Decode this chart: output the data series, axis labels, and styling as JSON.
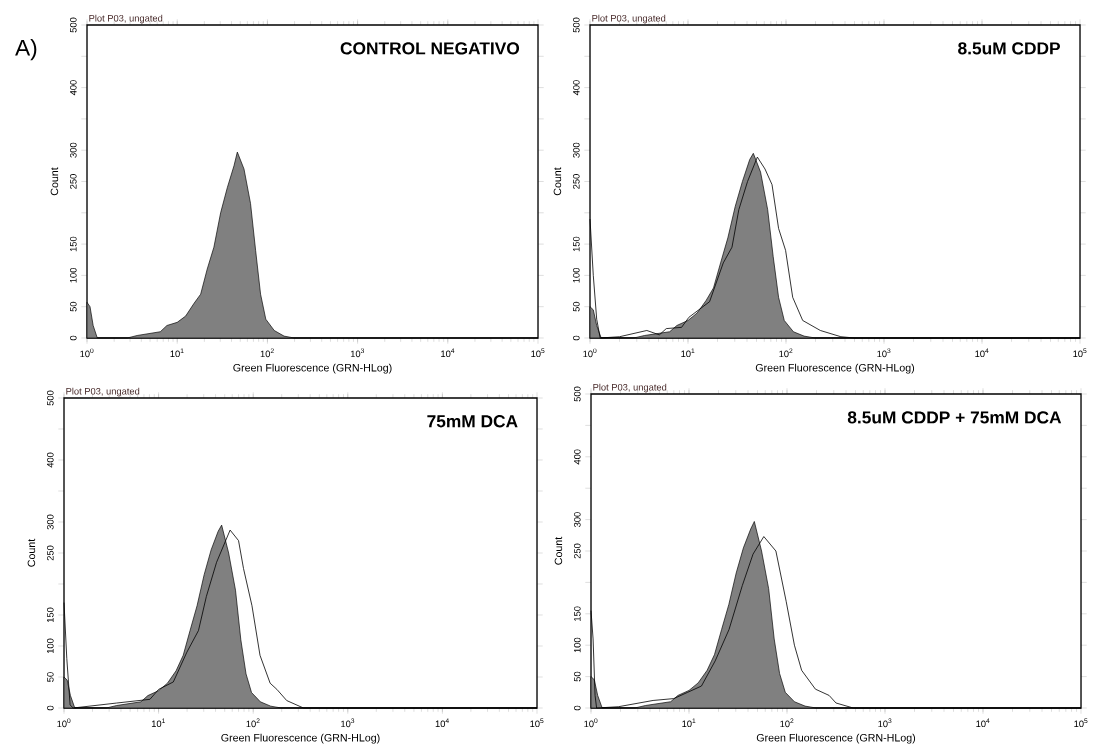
{
  "chart_data": [
    {
      "type": "area",
      "title": "CONTROL NEGATIVO",
      "subtitle": "Plot P03, ungated",
      "xlabel": "Green Fluorescence (GRN-HLog)",
      "ylabel": "Count",
      "annotations": [
        "A)"
      ],
      "log": "x",
      "xlim": [
        1,
        100000
      ],
      "xticks": [
        {
          "value": 1,
          "label": "10$^{0}$"
        },
        {
          "value": 10,
          "label": "10$^{1}$"
        },
        {
          "value": 100,
          "label": "10$^{2}$"
        },
        {
          "value": 1000,
          "label": "10$^{3}$"
        },
        {
          "value": 10000,
          "label": "10$^{4}$"
        },
        {
          "value": 100000,
          "label": "10$^{5}$"
        }
      ],
      "ylim": [
        0,
        500
      ],
      "yticks": [
        0,
        50,
        100,
        150,
        {
          "value": 200,
          "label": null
        },
        250,
        300,
        {
          "value": 350,
          "label": null
        },
        400,
        {
          "value": 450,
          "label": null
        },
        500
      ],
      "series": [
        {
          "color": "#808080",
          "x": [
            1,
            1.08,
            1.17,
            1.3,
            2.8,
            3.6,
            6.5,
            7.7,
            10,
            12.4,
            15.3,
            18.2,
            21.5,
            25.5,
            30.3,
            35.9,
            42.6,
            46.4,
            55,
            65,
            74,
            84,
            96,
            119,
            153,
            198,
            100000
          ],
          "values": [
            57,
            50,
            20,
            0,
            0,
            4,
            10,
            20,
            25,
            35,
            55,
            70,
            110,
            145,
            200,
            240,
            275,
            297,
            270,
            215,
            140,
            70,
            30,
            12,
            3,
            0,
            0
          ]
        }
      ]
    },
    {
      "type": "area",
      "title": "8.5uM CDDP",
      "subtitle": "Plot P03, ungated",
      "xlabel": "Green Fluorescence (GRN-HLog)",
      "ylabel": "Count",
      "log": "x",
      "xlim": [
        1,
        100000
      ],
      "xticks": [
        {
          "value": 1,
          "label": "10$^{0}$"
        },
        {
          "value": 10,
          "label": "10$^{1}$"
        },
        {
          "value": 100,
          "label": "10$^{2}$"
        },
        {
          "value": 1000,
          "label": "10$^{3}$"
        },
        {
          "value": 10000,
          "label": "10$^{4}$"
        },
        {
          "value": 100000,
          "label": "10$^{5}$"
        }
      ],
      "ylim": [
        0,
        500
      ],
      "yticks": [
        0,
        50,
        100,
        150,
        {
          "value": 200,
          "label": null
        },
        250,
        300,
        {
          "value": 350,
          "label": null
        },
        400,
        {
          "value": 450,
          "label": null
        },
        500
      ],
      "series": [
        {
          "color": "#808080",
          "x": [
            1,
            1.08,
            1.17,
            1.3,
            2.8,
            3.6,
            6.5,
            7.7,
            10,
            12.4,
            15.3,
            18.2,
            21.5,
            25.5,
            30.3,
            35.9,
            42.6,
            46.4,
            55,
            65,
            74,
            84,
            96,
            119,
            153,
            198,
            100000
          ],
          "values": [
            50,
            45,
            20,
            0,
            0,
            4,
            10,
            20,
            28,
            40,
            60,
            80,
            120,
            160,
            210,
            250,
            285,
            295,
            265,
            205,
            130,
            65,
            28,
            10,
            3,
            0,
            0
          ]
        },
        {
          "type": "line",
          "color": "#000000",
          "x": [
            1,
            1.08,
            1.17,
            1.27,
            2.0,
            3.8,
            5.1,
            6.0,
            8.6,
            10.2,
            16.6,
            22.9,
            28.1,
            33,
            40.5,
            51,
            61,
            72,
            84,
            99,
            117,
            148,
            224,
            363,
            500,
            100000
          ],
          "values": [
            190,
            100,
            30,
            0,
            2,
            12,
            5,
            15,
            17,
            33,
            58,
            120,
            145,
            205,
            250,
            289,
            270,
            245,
            175,
            140,
            65,
            28,
            12,
            2,
            0,
            0
          ]
        }
      ]
    },
    {
      "type": "area",
      "title": "75mM DCA",
      "subtitle": "Plot P03, ungated",
      "xlabel": "Green Fluorescence (GRN-HLog)",
      "ylabel": "Count",
      "log": "x",
      "xlim": [
        1,
        100000
      ],
      "xticks": [
        {
          "value": 1,
          "label": "10$^{0}$"
        },
        {
          "value": 10,
          "label": "10$^{1}$"
        },
        {
          "value": 100,
          "label": "10$^{2}$"
        },
        {
          "value": 1000,
          "label": "10$^{3}$"
        },
        {
          "value": 10000,
          "label": "10$^{4}$"
        },
        {
          "value": 100000,
          "label": "10$^{5}$"
        }
      ],
      "ylim": [
        0,
        500
      ],
      "yticks": [
        0,
        50,
        100,
        150,
        {
          "value": 200,
          "label": null
        },
        250,
        300,
        {
          "value": 350,
          "label": null
        },
        400,
        {
          "value": 450,
          "label": null
        },
        500
      ],
      "series": [
        {
          "color": "#808080",
          "x": [
            1,
            1.08,
            1.17,
            1.3,
            2.8,
            3.6,
            6.5,
            7.7,
            10,
            12.4,
            15.3,
            18.2,
            21.5,
            25.5,
            30.3,
            35.9,
            42.6,
            46.4,
            55,
            65,
            74,
            84,
            96,
            119,
            153,
            198,
            100000
          ],
          "values": [
            50,
            45,
            20,
            0,
            0,
            4,
            10,
            20,
            28,
            40,
            60,
            85,
            125,
            165,
            215,
            255,
            285,
            295,
            250,
            190,
            110,
            55,
            25,
            10,
            3,
            0,
            0
          ]
        },
        {
          "type": "line",
          "color": "#000000",
          "x": [
            1,
            1.07,
            1.16,
            1.25,
            3.6,
            8.1,
            10,
            14.3,
            19.9,
            26.4,
            32,
            41,
            57,
            70,
            79,
            97,
            118,
            151,
            178,
            226,
            340,
            100000
          ],
          "values": [
            170,
            80,
            5,
            0,
            8,
            14,
            30,
            42,
            90,
            125,
            180,
            235,
            287,
            270,
            225,
            165,
            85,
            40,
            30,
            12,
            0,
            0
          ]
        }
      ]
    },
    {
      "type": "area",
      "title": "8.5uM CDDP + 75mM DCA",
      "subtitle": "Plot P03, ungated",
      "xlabel": "Green Fluorescence (GRN-HLog)",
      "ylabel": "Count",
      "log": "x",
      "xlim": [
        1,
        100000
      ],
      "xticks": [
        {
          "value": 1,
          "label": "10$^{0}$"
        },
        {
          "value": 10,
          "label": "10$^{1}$"
        },
        {
          "value": 100,
          "label": "10$^{2}$"
        },
        {
          "value": 1000,
          "label": "10$^{3}$"
        },
        {
          "value": 10000,
          "label": "10$^{4}$"
        },
        {
          "value": 100000,
          "label": "10$^{5}$"
        }
      ],
      "ylim": [
        0,
        500
      ],
      "yticks": [
        0,
        50,
        100,
        150,
        {
          "value": 200,
          "label": null
        },
        250,
        300,
        {
          "value": 350,
          "label": null
        },
        400,
        {
          "value": 450,
          "label": null
        },
        500
      ],
      "series": [
        {
          "color": "#808080",
          "x": [
            1,
            1.08,
            1.17,
            1.3,
            2.8,
            3.6,
            6.5,
            7.7,
            10,
            12.4,
            15.3,
            18.2,
            21.5,
            25.5,
            30.3,
            35.9,
            42.6,
            46.4,
            55,
            65,
            74,
            84,
            96,
            119,
            153,
            198,
            100000
          ],
          "values": [
            50,
            45,
            20,
            0,
            0,
            4,
            10,
            20,
            28,
            40,
            60,
            85,
            125,
            165,
            215,
            255,
            285,
            297,
            250,
            190,
            110,
            55,
            25,
            10,
            3,
            0,
            0
          ]
        },
        {
          "type": "line",
          "color": "#000000",
          "x": [
            1,
            1.05,
            1.1,
            1.14,
            1.9,
            4.3,
            7,
            9.7,
            13.4,
            18.5,
            25.6,
            35,
            45,
            58,
            77,
            98,
            119,
            141,
            195,
            269,
            316,
            474,
            100000
          ],
          "values": [
            155,
            110,
            20,
            0,
            2,
            12,
            15,
            25,
            35,
            75,
            125,
            195,
            245,
            273,
            250,
            170,
            100,
            60,
            30,
            20,
            8,
            0,
            0
          ]
        }
      ]
    }
  ]
}
